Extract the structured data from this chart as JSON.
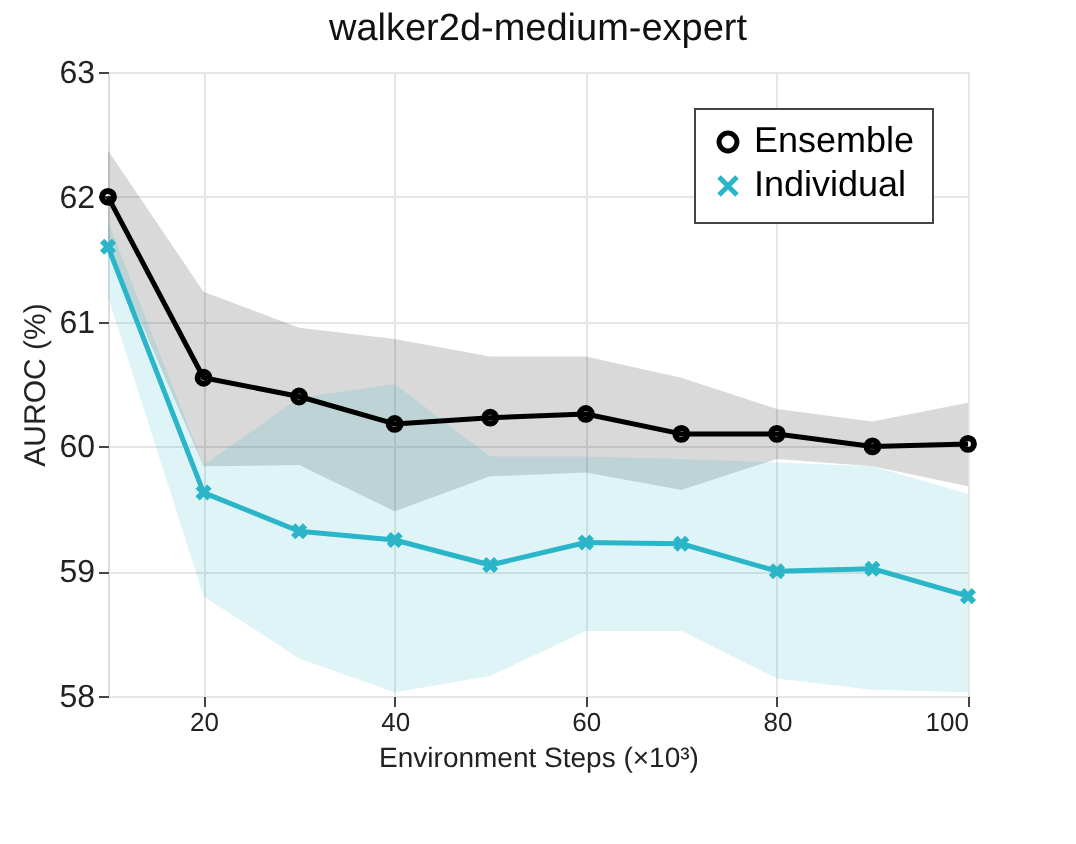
{
  "chart_data": {
    "type": "line",
    "title": "walker2d-medium-expert",
    "xlabel": "Environment Steps (×10³)",
    "ylabel": "AUROC (%)",
    "x": [
      10,
      20,
      30,
      40,
      50,
      60,
      70,
      80,
      90,
      100
    ],
    "series": [
      {
        "name": "Ensemble",
        "color": "#000000",
        "marker": "circle",
        "values": [
          62.0,
          60.55,
          60.4,
          60.18,
          60.23,
          60.26,
          60.1,
          60.1,
          60.0,
          60.02
        ],
        "lower": [
          61.6,
          59.84,
          59.85,
          59.48,
          59.76,
          59.79,
          59.65,
          59.9,
          59.84,
          59.68
        ],
        "upper": [
          62.37,
          61.24,
          60.95,
          60.86,
          60.72,
          60.72,
          60.55,
          60.3,
          60.2,
          60.35
        ]
      },
      {
        "name": "Individual",
        "color": "#2ab5c8",
        "marker": "cross",
        "values": [
          61.6,
          59.63,
          59.32,
          59.25,
          59.05,
          59.23,
          59.22,
          59.0,
          59.02,
          58.8
        ],
        "lower": [
          61.2,
          58.8,
          58.3,
          58.03,
          58.16,
          58.52,
          58.52,
          58.14,
          58.05,
          58.03
        ],
        "upper": [
          61.8,
          59.85,
          60.39,
          60.5,
          59.92,
          59.92,
          59.9,
          59.87,
          59.84,
          59.62
        ]
      }
    ],
    "xlim": [
      10,
      100
    ],
    "xticks": [
      20,
      40,
      60,
      80,
      100
    ],
    "ylim": [
      58,
      63
    ],
    "yticks": [
      58,
      59,
      60,
      61,
      62,
      63
    ],
    "grid": true,
    "legend": "top right",
    "line_style": "solid"
  }
}
